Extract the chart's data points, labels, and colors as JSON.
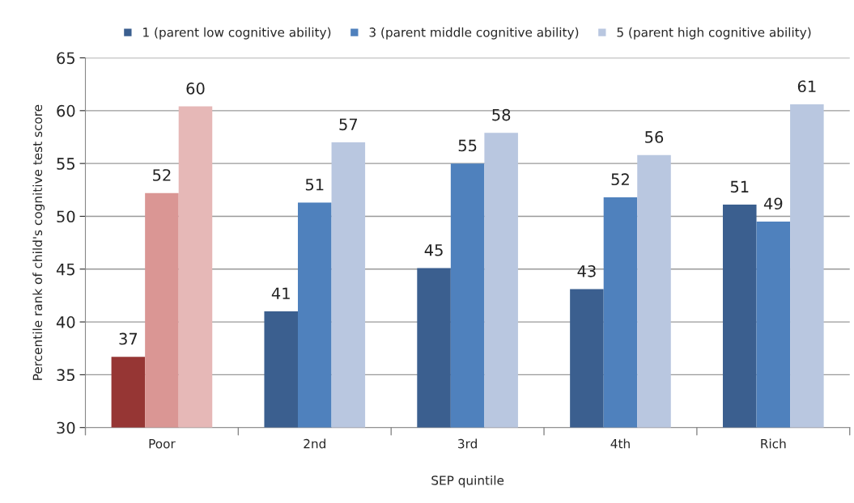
{
  "chart_data": {
    "type": "bar",
    "xlabel": "SEP quintile",
    "ylabel": "Percentile rank of child's cognitive test score",
    "categories": [
      "Poor",
      "2nd",
      "3rd",
      "4th",
      "Rich"
    ],
    "series": [
      {
        "name": "1 (parent low cognitive ability)",
        "color": "#3b5f8f",
        "colors": [
          "#963634",
          "#3b5f8f",
          "#3b5f8f",
          "#3b5f8f",
          "#3b5f8f"
        ],
        "values": [
          36.7,
          41.0,
          45.1,
          43.1,
          51.1
        ],
        "value_labels": [
          "37",
          "41",
          "45",
          "43",
          "51"
        ]
      },
      {
        "name": "3 (parent middle cognitive ability)",
        "color": "#4f81bd",
        "colors": [
          "#da9694",
          "#4f81bd",
          "#4f81bd",
          "#4f81bd",
          "#4f81bd"
        ],
        "values": [
          52.2,
          51.3,
          55.0,
          51.8,
          49.5
        ],
        "value_labels": [
          "52",
          "51",
          "55",
          "52",
          "49"
        ]
      },
      {
        "name": "5 (parent high cognitive ability)",
        "color": "#b9c7e0",
        "colors": [
          "#e6b8b7",
          "#b9c7e0",
          "#b9c7e0",
          "#b9c7e0",
          "#b9c7e0"
        ],
        "values": [
          60.4,
          57.0,
          57.9,
          55.8,
          60.6
        ],
        "value_labels": [
          "60",
          "57",
          "58",
          "56",
          "61"
        ]
      }
    ],
    "ylim": [
      30,
      65
    ],
    "yticks": [
      30,
      35,
      40,
      45,
      50,
      55,
      60,
      65
    ],
    "grid": "y",
    "legend": "top"
  }
}
